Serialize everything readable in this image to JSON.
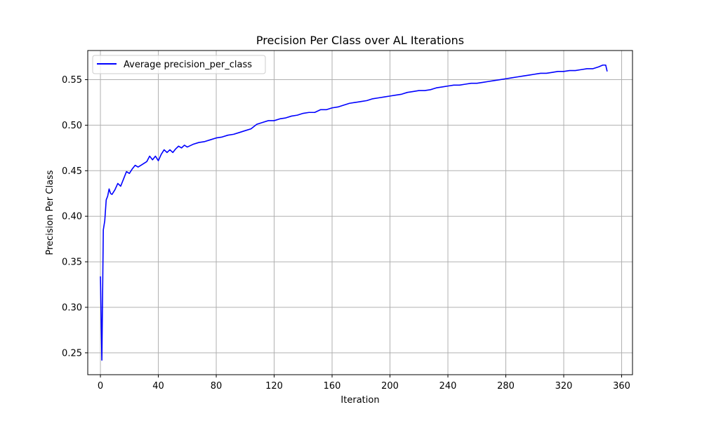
{
  "chart_data": {
    "type": "line",
    "title": "Precision Per Class over AL Iterations",
    "xlabel": "Iteration",
    "ylabel": "Precision Per Class",
    "xlim": [
      -8.75,
      367.5
    ],
    "ylim": [
      0.226,
      0.582
    ],
    "xticks": [
      0,
      40,
      80,
      120,
      160,
      200,
      240,
      280,
      320,
      360
    ],
    "yticks": [
      0.25,
      0.3,
      0.35,
      0.4,
      0.45,
      0.5,
      0.55
    ],
    "grid": true,
    "legend_position": "upper-left",
    "series": [
      {
        "name": "Average precision_per_class",
        "color": "#0000ff",
        "points": [
          [
            0,
            0.334
          ],
          [
            1,
            0.242
          ],
          [
            2,
            0.385
          ],
          [
            3,
            0.395
          ],
          [
            4,
            0.418
          ],
          [
            5,
            0.422
          ],
          [
            6,
            0.43
          ],
          [
            7,
            0.425
          ],
          [
            8,
            0.424
          ],
          [
            10,
            0.429
          ],
          [
            12,
            0.436
          ],
          [
            14,
            0.433
          ],
          [
            16,
            0.441
          ],
          [
            18,
            0.449
          ],
          [
            20,
            0.447
          ],
          [
            22,
            0.452
          ],
          [
            24,
            0.456
          ],
          [
            26,
            0.454
          ],
          [
            28,
            0.456
          ],
          [
            30,
            0.458
          ],
          [
            32,
            0.46
          ],
          [
            34,
            0.466
          ],
          [
            36,
            0.462
          ],
          [
            38,
            0.466
          ],
          [
            40,
            0.461
          ],
          [
            42,
            0.468
          ],
          [
            44,
            0.473
          ],
          [
            46,
            0.47
          ],
          [
            48,
            0.473
          ],
          [
            50,
            0.47
          ],
          [
            52,
            0.474
          ],
          [
            54,
            0.477
          ],
          [
            56,
            0.475
          ],
          [
            58,
            0.478
          ],
          [
            60,
            0.476
          ],
          [
            64,
            0.479
          ],
          [
            68,
            0.481
          ],
          [
            72,
            0.482
          ],
          [
            76,
            0.484
          ],
          [
            80,
            0.486
          ],
          [
            84,
            0.487
          ],
          [
            88,
            0.489
          ],
          [
            92,
            0.49
          ],
          [
            96,
            0.492
          ],
          [
            100,
            0.494
          ],
          [
            104,
            0.496
          ],
          [
            108,
            0.501
          ],
          [
            112,
            0.503
          ],
          [
            116,
            0.505
          ],
          [
            120,
            0.505
          ],
          [
            124,
            0.507
          ],
          [
            128,
            0.508
          ],
          [
            132,
            0.51
          ],
          [
            136,
            0.511
          ],
          [
            140,
            0.513
          ],
          [
            144,
            0.514
          ],
          [
            148,
            0.514
          ],
          [
            152,
            0.517
          ],
          [
            156,
            0.517
          ],
          [
            160,
            0.519
          ],
          [
            164,
            0.52
          ],
          [
            168,
            0.522
          ],
          [
            172,
            0.524
          ],
          [
            176,
            0.525
          ],
          [
            180,
            0.526
          ],
          [
            184,
            0.527
          ],
          [
            188,
            0.529
          ],
          [
            192,
            0.53
          ],
          [
            196,
            0.531
          ],
          [
            200,
            0.532
          ],
          [
            204,
            0.533
          ],
          [
            208,
            0.534
          ],
          [
            212,
            0.536
          ],
          [
            216,
            0.537
          ],
          [
            220,
            0.538
          ],
          [
            224,
            0.538
          ],
          [
            228,
            0.539
          ],
          [
            232,
            0.541
          ],
          [
            236,
            0.542
          ],
          [
            240,
            0.543
          ],
          [
            244,
            0.544
          ],
          [
            248,
            0.544
          ],
          [
            252,
            0.545
          ],
          [
            256,
            0.546
          ],
          [
            260,
            0.546
          ],
          [
            264,
            0.547
          ],
          [
            268,
            0.548
          ],
          [
            272,
            0.549
          ],
          [
            276,
            0.55
          ],
          [
            280,
            0.551
          ],
          [
            284,
            0.552
          ],
          [
            288,
            0.553
          ],
          [
            292,
            0.554
          ],
          [
            296,
            0.555
          ],
          [
            300,
            0.556
          ],
          [
            304,
            0.557
          ],
          [
            308,
            0.557
          ],
          [
            312,
            0.558
          ],
          [
            316,
            0.559
          ],
          [
            320,
            0.559
          ],
          [
            324,
            0.56
          ],
          [
            328,
            0.56
          ],
          [
            332,
            0.561
          ],
          [
            336,
            0.562
          ],
          [
            340,
            0.562
          ],
          [
            344,
            0.564
          ],
          [
            347,
            0.566
          ],
          [
            349,
            0.566
          ],
          [
            350,
            0.559
          ]
        ]
      }
    ]
  }
}
